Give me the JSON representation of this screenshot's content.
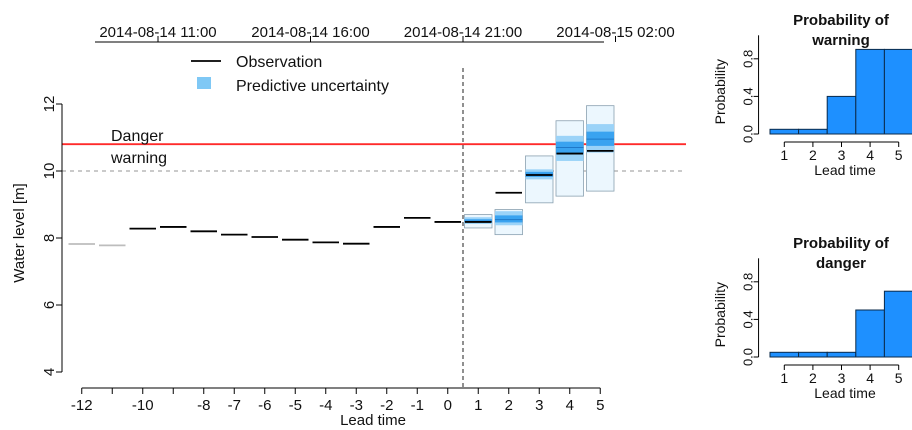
{
  "chart_data": [
    {
      "type": "line",
      "xlabel": "Lead time",
      "ylabel": "Water level [m]",
      "ylim": [
        4,
        12
      ],
      "x_ticks": [
        -12,
        -10,
        -8,
        -7,
        -6,
        -5,
        -4,
        -3,
        -2,
        -1,
        0,
        1,
        2,
        3,
        4,
        5
      ],
      "y_ticks": [
        4,
        6,
        8,
        10,
        12
      ],
      "top_axis_labels": [
        "2014-08-14 11:00",
        "2014-08-14 16:00",
        "2014-08-14 21:00",
        "2014-08-15 02:00"
      ],
      "legend": {
        "position": "top-center",
        "entries": [
          "Observation",
          "Predictive uncertainty"
        ]
      },
      "thresholds": [
        {
          "label": "Danger",
          "value": 10.8,
          "color": "#ff2a2a"
        },
        {
          "label": "warning",
          "value": 10.0,
          "color": "#b0b0b0"
        }
      ],
      "now_line_x": 0.5,
      "observation": {
        "x": [
          -12,
          -11,
          -10,
          -9,
          -8,
          -7,
          -6,
          -5,
          -4,
          -3,
          -2,
          -1,
          0,
          1,
          2,
          3,
          4,
          5
        ],
        "y": [
          7.82,
          7.78,
          8.28,
          8.33,
          8.2,
          8.1,
          8.03,
          7.95,
          7.87,
          7.83,
          8.33,
          8.6,
          8.48,
          8.48,
          9.35,
          9.88,
          10.52,
          10.6
        ]
      },
      "forecast": {
        "lead_time": [
          1,
          2,
          3,
          4,
          5
        ],
        "min": [
          8.3,
          8.1,
          9.05,
          9.25,
          9.4
        ],
        "q25": [
          8.42,
          8.38,
          9.75,
          10.3,
          10.55
        ],
        "median": [
          8.5,
          8.55,
          9.9,
          10.7,
          10.95
        ],
        "q75": [
          8.62,
          8.8,
          10.05,
          11.05,
          11.4
        ],
        "max": [
          8.7,
          8.85,
          10.45,
          11.5,
          11.95
        ]
      },
      "colors": {
        "observation": "#000000",
        "uncertainty": "#3aa3f0",
        "danger": "#ff2a2a"
      }
    },
    {
      "type": "bar",
      "title": "Probability of\nwarning",
      "xlabel": "Lead time",
      "ylabel": "Probability",
      "categories": [
        "1",
        "2",
        "3",
        "4",
        "5"
      ],
      "values": [
        0.05,
        0.05,
        0.4,
        0.9,
        0.9
      ],
      "y_ticks": [
        "0.0",
        "0.4",
        "0.8"
      ],
      "ylim": [
        0,
        1
      ],
      "color": "#1e90ff"
    },
    {
      "type": "bar",
      "title": "Probability of\ndanger",
      "xlabel": "Lead time",
      "ylabel": "Probability",
      "categories": [
        "1",
        "2",
        "3",
        "4",
        "5"
      ],
      "values": [
        0.05,
        0.05,
        0.05,
        0.5,
        0.7
      ],
      "y_ticks": [
        "0.0",
        "0.4",
        "0.8"
      ],
      "ylim": [
        0,
        1
      ],
      "color": "#1e90ff"
    }
  ]
}
